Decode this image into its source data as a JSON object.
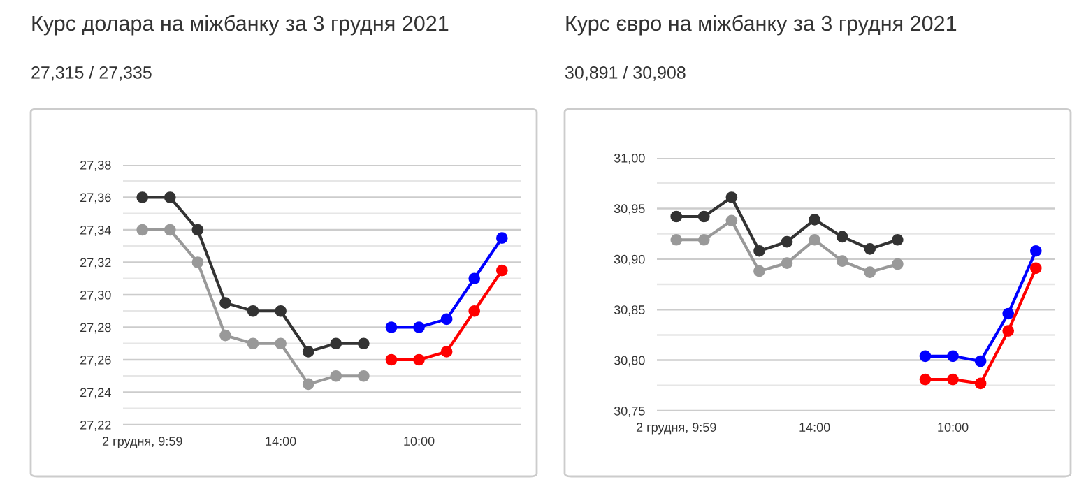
{
  "chart_data": [
    {
      "type": "line",
      "title": "Курс долара на міжбанку за 3 грудня 2021",
      "subtitle": "27,315 / 27,335",
      "categories": [
        "2 грудня, 9:59",
        null,
        null,
        null,
        null,
        "14:00",
        null,
        null,
        null,
        null,
        "10:00",
        null,
        null,
        null
      ],
      "series": [
        {
          "color": "#333333",
          "values": [
            27.36,
            27.36,
            27.34,
            27.295,
            27.29,
            27.29,
            27.265,
            27.27,
            27.27,
            null,
            null,
            null,
            null,
            null
          ]
        },
        {
          "color": "#999999",
          "values": [
            27.34,
            27.34,
            27.32,
            27.275,
            27.27,
            27.27,
            27.245,
            27.25,
            27.25,
            null,
            null,
            null,
            null,
            null
          ]
        },
        {
          "color": "#0000ff",
          "values": [
            null,
            null,
            null,
            null,
            null,
            null,
            null,
            null,
            null,
            27.28,
            27.28,
            27.285,
            27.31,
            27.335
          ]
        },
        {
          "color": "#ff0000",
          "values": [
            null,
            null,
            null,
            null,
            null,
            null,
            null,
            null,
            null,
            27.26,
            27.26,
            27.265,
            27.29,
            27.315
          ]
        }
      ],
      "ylim": [
        27.22,
        27.38
      ],
      "yticks": [
        {
          "value": 27.22,
          "label": "27,22"
        },
        {
          "value": 27.23,
          "label": null
        },
        {
          "value": 27.24,
          "label": "27,24"
        },
        {
          "value": 27.25,
          "label": null
        },
        {
          "value": 27.26,
          "label": "27,26"
        },
        {
          "value": 27.27,
          "label": null
        },
        {
          "value": 27.28,
          "label": "27,28"
        },
        {
          "value": 27.29,
          "label": null
        },
        {
          "value": 27.3,
          "label": "27,30"
        },
        {
          "value": 27.31,
          "label": null
        },
        {
          "value": 27.32,
          "label": "27,32"
        },
        {
          "value": 27.33,
          "label": null
        },
        {
          "value": 27.34,
          "label": "27,34"
        },
        {
          "value": 27.35,
          "label": null
        },
        {
          "value": 27.36,
          "label": "27,36"
        },
        {
          "value": 27.37,
          "label": null
        },
        {
          "value": 27.38,
          "label": "27,38"
        }
      ],
      "grid": "y",
      "marker": "circle",
      "line_style": "solid"
    },
    {
      "type": "line",
      "title": "Курс євро на міжбанку за 3 грудня 2021",
      "subtitle": "30,891 / 30,908",
      "categories": [
        "2 грудня, 9:59",
        null,
        null,
        null,
        null,
        "14:00",
        null,
        null,
        null,
        null,
        "10:00",
        null,
        null,
        null
      ],
      "series": [
        {
          "color": "#333333",
          "values": [
            30.942,
            30.942,
            30.961,
            30.908,
            30.917,
            30.939,
            30.922,
            30.91,
            30.919,
            null,
            null,
            null,
            null,
            null
          ]
        },
        {
          "color": "#999999",
          "values": [
            30.919,
            30.919,
            30.938,
            30.888,
            30.896,
            30.919,
            30.898,
            30.887,
            30.895,
            null,
            null,
            null,
            null,
            null
          ]
        },
        {
          "color": "#0000ff",
          "values": [
            null,
            null,
            null,
            null,
            null,
            null,
            null,
            null,
            null,
            30.804,
            30.804,
            30.799,
            30.846,
            30.908
          ]
        },
        {
          "color": "#ff0000",
          "values": [
            null,
            null,
            null,
            null,
            null,
            null,
            null,
            null,
            null,
            30.781,
            30.781,
            30.777,
            30.829,
            30.891
          ]
        }
      ],
      "ylim": [
        30.75,
        31.0
      ],
      "yticks": [
        {
          "value": 30.75,
          "label": "30,75"
        },
        {
          "value": 30.775,
          "label": null
        },
        {
          "value": 30.8,
          "label": "30,80"
        },
        {
          "value": 30.825,
          "label": null
        },
        {
          "value": 30.85,
          "label": "30,85"
        },
        {
          "value": 30.875,
          "label": null
        },
        {
          "value": 30.9,
          "label": "30,90"
        },
        {
          "value": 30.925,
          "label": null
        },
        {
          "value": 30.95,
          "label": "30,95"
        },
        {
          "value": 30.975,
          "label": null
        },
        {
          "value": 31.0,
          "label": "31,00"
        }
      ],
      "grid": "y",
      "marker": "circle",
      "line_style": "solid"
    }
  ]
}
